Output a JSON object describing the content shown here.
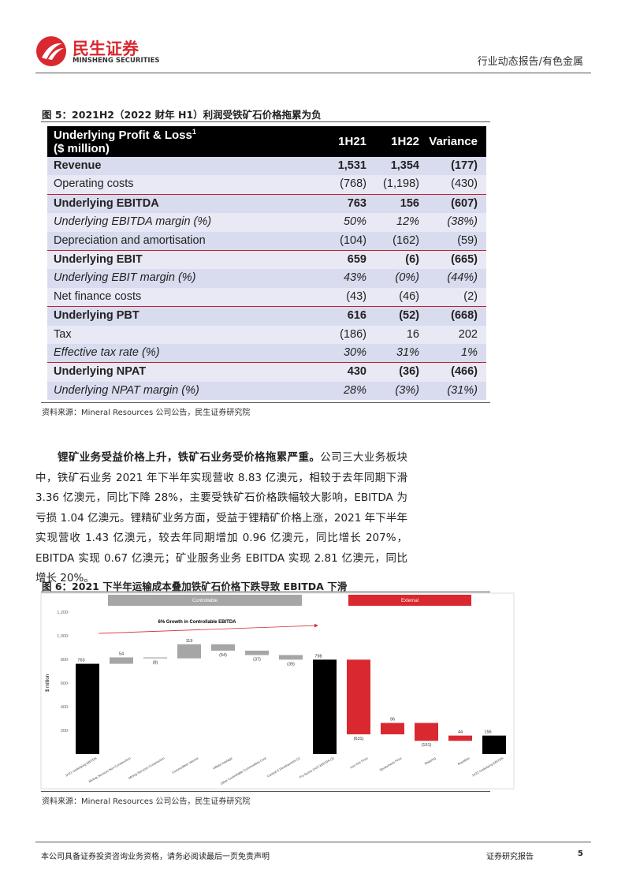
{
  "header": {
    "brand_cn": "民生证券",
    "brand_en": "MINSHENG SECURITIES",
    "category": "行业动态报告/有色金属"
  },
  "figure5": {
    "title": "图 5：2021H2（2022 财年 H1）利润受铁矿石价格拖累为负",
    "source": "资料来源：Mineral Resources 公司公告，民生证券研究院",
    "table": {
      "header": {
        "label": "Underlying Profit & Loss",
        "note": "1",
        "unit": "($ million)",
        "columns": [
          "1H21",
          "1H22",
          "Variance"
        ]
      },
      "rows": [
        {
          "style": "bold",
          "cells": [
            "Revenue",
            "1,531",
            "1,354",
            "(177)"
          ]
        },
        {
          "style": "normal",
          "cells": [
            "Operating costs",
            "(768)",
            "(1,198)",
            "(430)"
          ]
        },
        {
          "style": "bold",
          "cells": [
            "Underlying EBITDA",
            "763",
            "156",
            "(607)"
          ]
        },
        {
          "style": "italic",
          "cells": [
            "Underlying EBITDA margin (%)",
            "50%",
            "12%",
            "(38%)"
          ]
        },
        {
          "style": "normal",
          "cells": [
            "Depreciation and amortisation",
            "(104)",
            "(162)",
            "(59)"
          ]
        },
        {
          "style": "bold",
          "cells": [
            "Underlying EBIT",
            "659",
            "(6)",
            "(665)"
          ]
        },
        {
          "style": "italic",
          "cells": [
            "Underlying EBIT margin (%)",
            "43%",
            "(0%)",
            "(44%)"
          ]
        },
        {
          "style": "normal",
          "cells": [
            "Net finance costs",
            "(43)",
            "(46)",
            "(2)"
          ]
        },
        {
          "style": "bold",
          "cells": [
            "Underlying PBT",
            "616",
            "(52)",
            "(668)"
          ]
        },
        {
          "style": "normal",
          "cells": [
            "Tax",
            "(186)",
            "16",
            "202"
          ]
        },
        {
          "style": "italic",
          "cells": [
            "Effective tax rate (%)",
            "30%",
            "31%",
            "1%"
          ]
        },
        {
          "style": "bold",
          "cells": [
            "Underlying NPAT",
            "430",
            "(36)",
            "(466)"
          ]
        },
        {
          "style": "italic",
          "cells": [
            "Underlying NPAT margin (%)",
            "28%",
            "(3%)",
            "(31%)"
          ]
        }
      ]
    }
  },
  "paragraph": {
    "lead": "锂矿业务受益价格上升，铁矿石业务受价格拖累严重。",
    "body": "公司三大业务板块中，铁矿石业务 2021 年下半年实现营收 8.83 亿澳元，相较于去年同期下滑 3.36 亿澳元，同比下降 28%，主要受铁矿石价格跌幅较大影响，EBITDA 为亏损 1.04 亿澳元。锂精矿业务方面，受益于锂精矿价格上涨，2021 年下半年实现营收 1.43 亿澳元，较去年同期增加 0.96 亿澳元，同比增长 207%，EBITDA 实现 0.67 亿澳元；矿业服务业务 EBITDA 实现 2.81 亿澳元，同比增长 20%。"
  },
  "figure6": {
    "title": "图 6：2021 下半年运输成本叠加铁矿石价格下跌导致 EBITDA 下滑",
    "source": "资料来源：Mineral Resources 公司公告，民生证券研究院"
  },
  "chart_data": {
    "type": "waterfall",
    "y_label": "$ million",
    "annotation": "6% Growth in Controllable EBITDA",
    "groups": [
      {
        "name": "Controllable",
        "color": "#a6a6a6"
      },
      {
        "name": "External",
        "color": "#d9282f"
      }
    ],
    "categories": [
      "1H21 Underlying EBITDA",
      "Mining Services Non-Construction",
      "Mining Services Construction",
      "Commodities Volume",
      "Offsite Haulage",
      "Other Controllable Commodities Cost",
      "Central & Development (1)",
      "Pro-forma 1H22 EBITDA (2)",
      "Iron Ore Price",
      "Spodumene Price",
      "Shipping",
      "Royalties",
      "1H22 Underlying EBITDA"
    ],
    "values": [
      763,
      54,
      -8,
      119,
      -54,
      -37,
      -39,
      798,
      -631,
      96,
      -151,
      44,
      156
    ],
    "value_labels": [
      "763",
      "54",
      "(8)",
      "119",
      "(54)",
      "(37)",
      "(39)",
      "798",
      "(631)",
      "96",
      "(151)",
      "44",
      "156"
    ],
    "kinds": [
      "total",
      "delta",
      "delta",
      "delta",
      "delta",
      "delta",
      "delta",
      "total",
      "delta",
      "delta",
      "delta",
      "delta",
      "total"
    ],
    "colors": [
      "#000000",
      "#a6a6a6",
      "#a6a6a6",
      "#a6a6a6",
      "#a6a6a6",
      "#a6a6a6",
      "#a6a6a6",
      "#000000",
      "#d9282f",
      "#d9282f",
      "#d9282f",
      "#d9282f",
      "#000000"
    ],
    "ylim": [
      0,
      1300
    ],
    "yticks": [
      200,
      400,
      600,
      800,
      {
        "value": 1000,
        "label": "1,000"
      },
      {
        "value": 1200,
        "label": "1,200"
      }
    ]
  },
  "footer": {
    "disclaimer": "本公司具备证券投资咨询业务资格，请务必阅读最后一页免责声明",
    "label": "证券研究报告",
    "page": "5"
  }
}
